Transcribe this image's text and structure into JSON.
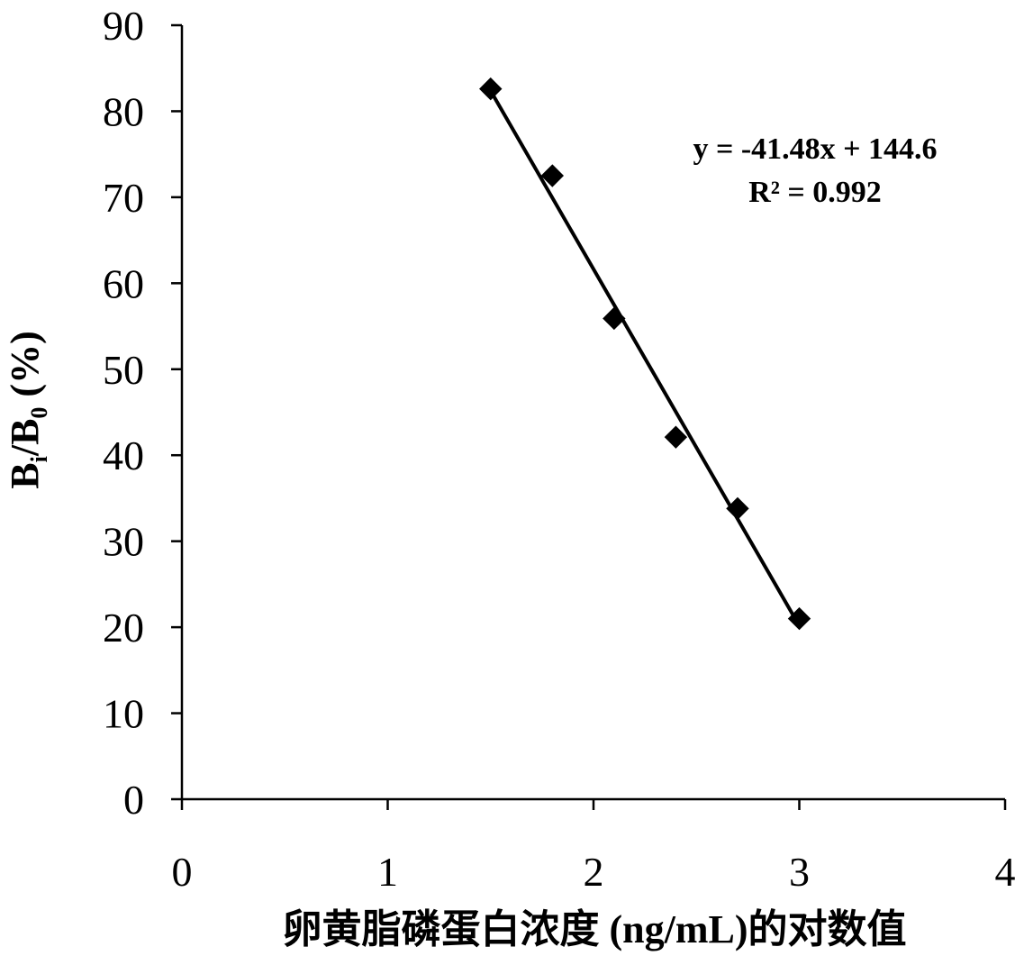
{
  "chart_data": {
    "type": "scatter",
    "title": "",
    "xlabel": "卵黄脂磷蛋白浓度 (ng/mL)的对数值",
    "ylabel_parts": {
      "b1": "B",
      "sub1": "i",
      "slash": "/B",
      "sub2": "0",
      "unit": " (%)"
    },
    "xlim": [
      0,
      4
    ],
    "ylim": [
      0,
      90
    ],
    "x_ticks": [
      0,
      1,
      2,
      3,
      4
    ],
    "y_ticks": [
      0,
      10,
      20,
      30,
      40,
      50,
      60,
      70,
      80,
      90
    ],
    "grid": false,
    "series": [
      {
        "points": [
          {
            "x": 1.5,
            "y": 82.6
          },
          {
            "x": 1.8,
            "y": 72.5
          },
          {
            "x": 2.1,
            "y": 55.9
          },
          {
            "x": 2.4,
            "y": 42.1
          },
          {
            "x": 2.7,
            "y": 33.8
          },
          {
            "x": 3.0,
            "y": 21.0
          }
        ],
        "marker": "diamond",
        "color": "#000000"
      }
    ],
    "trendline": {
      "slope": -41.48,
      "intercept": 144.6,
      "x_range": [
        1.5,
        3.0
      ]
    },
    "annotations": {
      "equation": "y = -41.48x + 144.6",
      "r_squared": "R² = 0.992"
    }
  }
}
